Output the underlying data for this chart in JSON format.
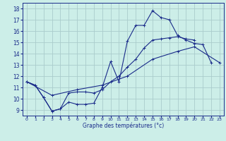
{
  "title": "Graphe des températures (°c)",
  "bg_color": "#cceee8",
  "grid_color": "#aacccc",
  "line_color": "#1a2b8a",
  "xlim": [
    -0.5,
    23.5
  ],
  "ylim": [
    8.5,
    18.5
  ],
  "xticks": [
    0,
    1,
    2,
    3,
    4,
    5,
    6,
    7,
    8,
    9,
    10,
    11,
    12,
    13,
    14,
    15,
    16,
    17,
    18,
    19,
    20,
    21,
    22,
    23
  ],
  "yticks": [
    9,
    10,
    11,
    12,
    13,
    14,
    15,
    16,
    17,
    18
  ],
  "line1_x": [
    0,
    1,
    2,
    3,
    4,
    5,
    6,
    7,
    8,
    9,
    10,
    11,
    12,
    13,
    14,
    15,
    16,
    17,
    18,
    19,
    20,
    21,
    22
  ],
  "line1_y": [
    11.5,
    11.2,
    10.1,
    8.9,
    9.1,
    9.7,
    9.5,
    9.5,
    9.6,
    11.0,
    13.3,
    11.5,
    15.1,
    16.5,
    16.5,
    17.8,
    17.2,
    17.0,
    15.6,
    15.2,
    14.9,
    14.8,
    13.2
  ],
  "line2_x": [
    0,
    1,
    2,
    3,
    4,
    5,
    6,
    7,
    8,
    9,
    10,
    11,
    12,
    13,
    14,
    15,
    16,
    17,
    18,
    19,
    20
  ],
  "line2_y": [
    11.5,
    11.2,
    10.1,
    8.9,
    9.1,
    10.5,
    10.6,
    10.6,
    10.5,
    10.8,
    11.5,
    12.0,
    12.8,
    13.5,
    14.5,
    15.2,
    15.3,
    15.4,
    15.5,
    15.3,
    15.2
  ],
  "line3_x": [
    0,
    3,
    6,
    9,
    12,
    15,
    18,
    20,
    23
  ],
  "line3_y": [
    11.5,
    10.3,
    10.8,
    11.2,
    12.0,
    13.5,
    14.2,
    14.6,
    13.2
  ]
}
